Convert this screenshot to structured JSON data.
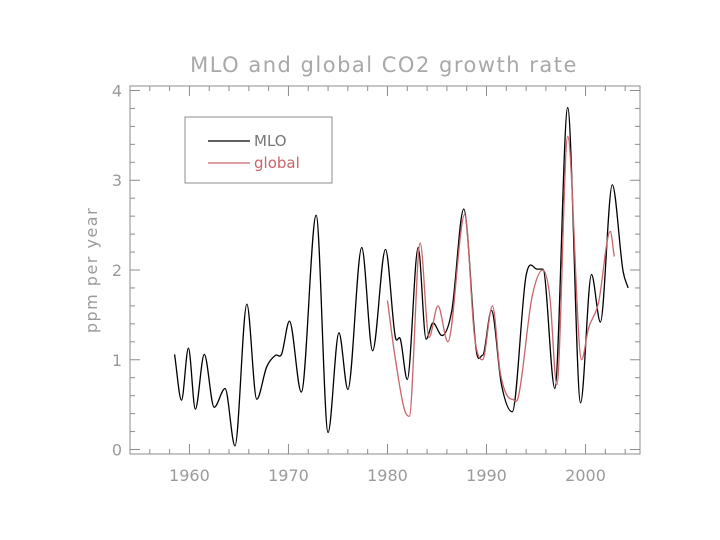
{
  "chart_data": {
    "type": "line",
    "title": "MLO and global CO2 growth rate",
    "xlabel": "",
    "ylabel": "ppm per year",
    "xlim": [
      1954,
      2005.5
    ],
    "ylim": [
      -0.05,
      4.05
    ],
    "x_ticks": [
      1960,
      1970,
      1980,
      1990,
      2000
    ],
    "y_ticks": [
      0,
      1,
      2,
      3,
      4
    ],
    "grid": false,
    "legend": "top-left",
    "series": [
      {
        "name": "MLO",
        "color": "#000000",
        "points": [
          [
            1958.5,
            1.06
          ],
          [
            1959.2,
            0.55
          ],
          [
            1959.9,
            1.13
          ],
          [
            1960.6,
            0.45
          ],
          [
            1961.5,
            1.06
          ],
          [
            1962.5,
            0.47
          ],
          [
            1963.6,
            0.68
          ],
          [
            1964.6,
            0.04
          ],
          [
            1965.8,
            1.62
          ],
          [
            1966.8,
            0.56
          ],
          [
            1967.8,
            0.92
          ],
          [
            1968.7,
            1.05
          ],
          [
            1969.3,
            1.06
          ],
          [
            1970.1,
            1.43
          ],
          [
            1971.3,
            0.64
          ],
          [
            1972.8,
            2.61
          ],
          [
            1974.0,
            0.19
          ],
          [
            1975.1,
            1.3
          ],
          [
            1976.0,
            0.67
          ],
          [
            1977.4,
            2.25
          ],
          [
            1978.5,
            1.1
          ],
          [
            1979.8,
            2.23
          ],
          [
            1980.8,
            1.25
          ],
          [
            1981.3,
            1.23
          ],
          [
            1982.0,
            0.78
          ],
          [
            1983.1,
            2.25
          ],
          [
            1983.9,
            1.23
          ],
          [
            1984.6,
            1.41
          ],
          [
            1985.5,
            1.27
          ],
          [
            1986.5,
            1.55
          ],
          [
            1987.7,
            2.68
          ],
          [
            1989.0,
            1.08
          ],
          [
            1989.6,
            1.05
          ],
          [
            1990.5,
            1.55
          ],
          [
            1991.5,
            0.73
          ],
          [
            1992.6,
            0.42
          ],
          [
            1994.0,
            1.94
          ],
          [
            1995.1,
            2.01
          ],
          [
            1995.7,
            2.01
          ],
          [
            1996.9,
            0.68
          ],
          [
            1998.2,
            3.81
          ],
          [
            1999.5,
            0.52
          ],
          [
            2000.6,
            1.95
          ],
          [
            2001.5,
            1.42
          ],
          [
            2002.7,
            2.95
          ],
          [
            2003.8,
            1.98
          ],
          [
            2004.3,
            1.8
          ]
        ]
      },
      {
        "name": "global",
        "color": "#c8646a",
        "points": [
          [
            1980.0,
            1.66
          ],
          [
            1980.7,
            1.08
          ],
          [
            1981.7,
            0.45
          ],
          [
            1982.2,
            0.37
          ],
          [
            1983.3,
            2.3
          ],
          [
            1984.2,
            1.25
          ],
          [
            1985.1,
            1.6
          ],
          [
            1986.1,
            1.2
          ],
          [
            1987.8,
            2.62
          ],
          [
            1988.8,
            1.25
          ],
          [
            1989.6,
            1.0
          ],
          [
            1990.6,
            1.6
          ],
          [
            1991.4,
            0.85
          ],
          [
            1992.6,
            0.56
          ],
          [
            1993.2,
            0.58
          ],
          [
            1994.6,
            1.7
          ],
          [
            1995.7,
            2.0
          ],
          [
            1996.4,
            1.7
          ],
          [
            1997.1,
            0.72
          ],
          [
            1998.2,
            3.49
          ],
          [
            1999.6,
            1.0
          ],
          [
            2000.3,
            1.35
          ],
          [
            2001.3,
            1.63
          ],
          [
            2002.5,
            2.43
          ],
          [
            2002.9,
            2.15
          ]
        ]
      }
    ]
  }
}
